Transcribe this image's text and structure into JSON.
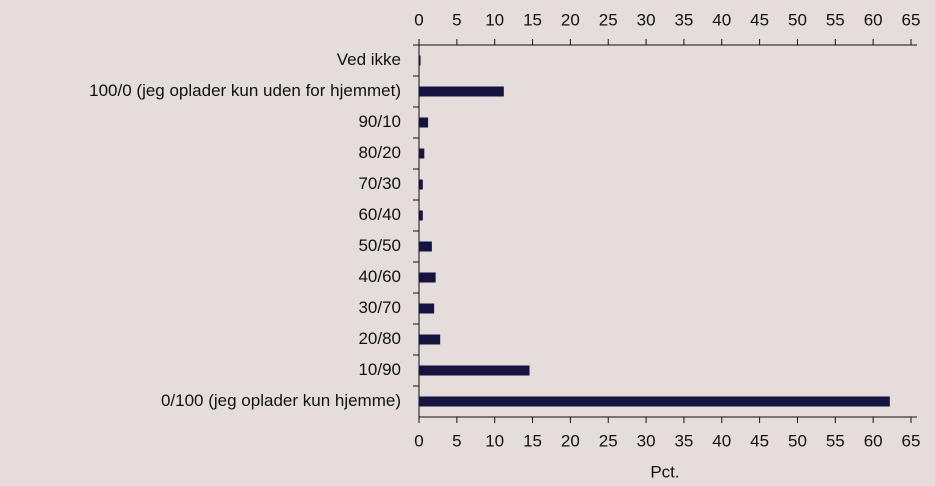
{
  "chart_data": {
    "type": "bar",
    "orientation": "horizontal",
    "categories": [
      "Ved ikke",
      "100/0 (jeg oplader kun uden for hjemmet)",
      "90/10",
      "80/20",
      "70/30",
      "60/40",
      "50/50",
      "40/60",
      "30/70",
      "20/80",
      "10/90",
      "0/100 (jeg oplader kun hjemme)"
    ],
    "values": [
      0.2,
      11.2,
      1.2,
      0.7,
      0.5,
      0.5,
      1.7,
      2.2,
      2.0,
      2.8,
      14.6,
      62.2
    ],
    "color": "#14143f",
    "xlabel": "Pct.",
    "xlim": [
      0,
      65
    ],
    "xticks": [
      0,
      5,
      10,
      15,
      20,
      25,
      30,
      35,
      40,
      45,
      50,
      55,
      60,
      65
    ],
    "grid": false
  }
}
